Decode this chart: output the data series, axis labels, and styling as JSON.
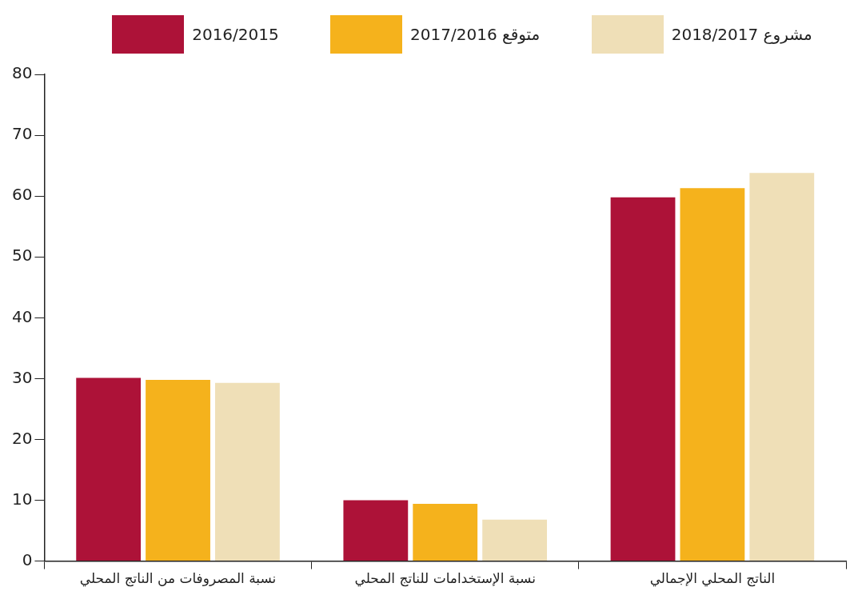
{
  "chart_data": {
    "type": "bar",
    "categories": [
      "نسبة المصروفات من الناتج المحلي",
      "نسبة الإستخدامات للناتج المحلي",
      "الناتج المحلي الإجمالي"
    ],
    "series": [
      {
        "name": "2016/2015",
        "color": "#ad1238",
        "values": [
          30.1,
          10.0,
          59.8
        ]
      },
      {
        "name": "2017/2016 متوقع",
        "color": "#f5b21c",
        "values": [
          29.8,
          9.4,
          61.3
        ]
      },
      {
        "name": "2018/2017 مشروع",
        "color": "#efdfb7",
        "values": [
          29.3,
          6.8,
          63.8
        ]
      }
    ],
    "ylim": [
      0,
      80
    ],
    "yticks": [
      0,
      10,
      20,
      30,
      40,
      50,
      60,
      70,
      80
    ],
    "grid": false,
    "legend": "top"
  }
}
